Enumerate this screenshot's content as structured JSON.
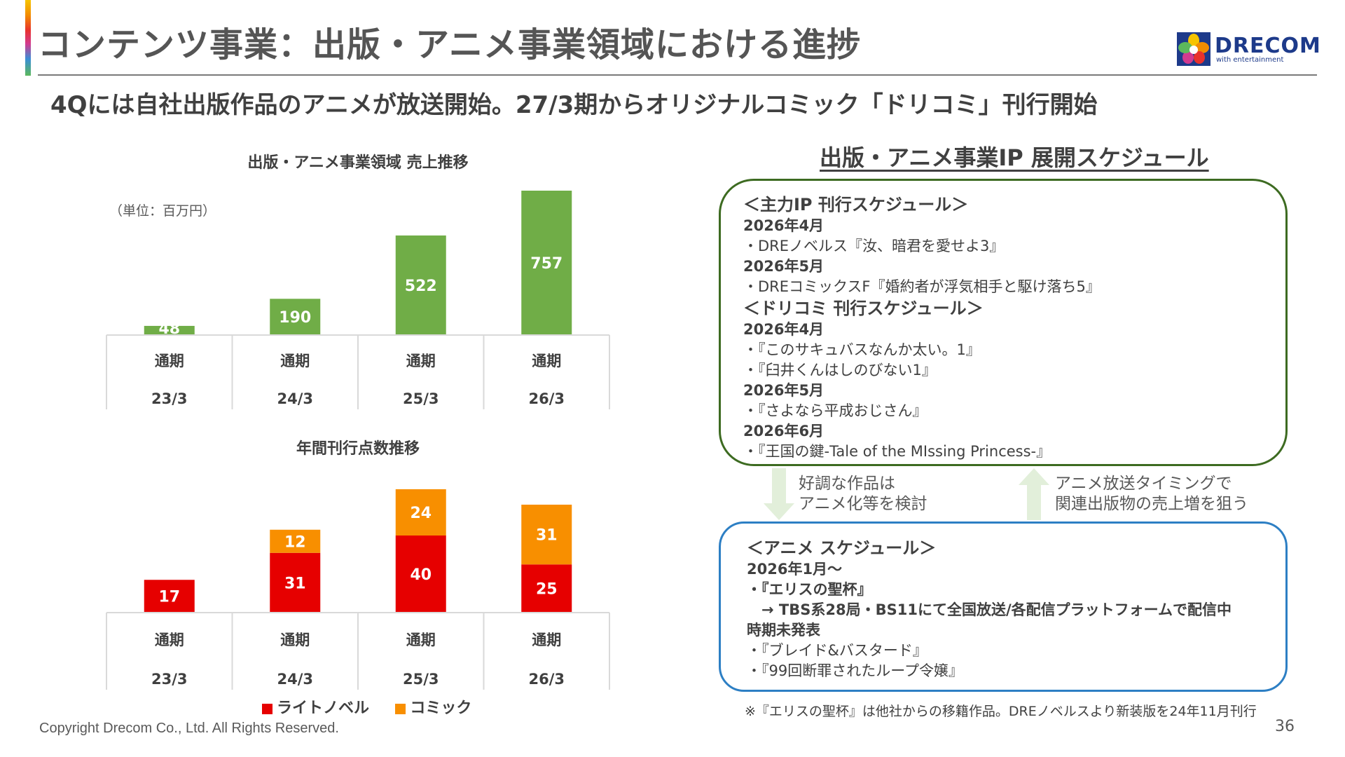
{
  "header": {
    "title": "コンテンツ事業：出版・アニメ事業領域における進捗",
    "subtitle": "4Qには自社出版作品のアニメが放送開始。27/3期からオリジナルコミック「ドリコミ」刊行開始",
    "logo_brand": "DRECOM",
    "logo_tagline": "with entertainment"
  },
  "chart_data": [
    {
      "type": "bar",
      "title": "出版・アニメ事業領域 売上推移",
      "unit": "（単位：百万円）",
      "categories": [
        "通期 23/3",
        "通期 24/3",
        "通期 25/3",
        "通期 26/3"
      ],
      "category_lines": [
        [
          "通期",
          "23/3"
        ],
        [
          "通期",
          "24/3"
        ],
        [
          "通期",
          "25/3"
        ],
        [
          "通期",
          "26/3"
        ]
      ],
      "values": [
        48,
        190,
        522,
        757
      ],
      "ylim": [
        0,
        757
      ],
      "color": "#70ad47"
    },
    {
      "type": "bar",
      "stacked": true,
      "title": "年間刊行点数推移",
      "categories": [
        "通期 23/3",
        "通期 24/3",
        "通期 25/3",
        "通期 26/3"
      ],
      "category_lines": [
        [
          "通期",
          "23/3"
        ],
        [
          "通期",
          "24/3"
        ],
        [
          "通期",
          "25/3"
        ],
        [
          "通期",
          "26/3"
        ]
      ],
      "series": [
        {
          "name": "ライトノベル",
          "values": [
            17,
            31,
            40,
            25
          ],
          "color": "#e60000"
        },
        {
          "name": "コミック",
          "values": [
            0,
            12,
            24,
            31
          ],
          "color": "#f88f00"
        }
      ],
      "ylim": [
        0,
        64
      ],
      "legend": "bottom"
    }
  ],
  "schedule": {
    "title": "出版・アニメ事業IP 展開スケジュール",
    "main_ip": {
      "heading": "＜主力IP 刊行スケジュール＞",
      "lines": [
        {
          "text": "2026年4月",
          "bold": true
        },
        {
          "text": "・DREノベルス『汝、暗君を愛せよ3』",
          "bold": false
        },
        {
          "text": "2026年5月",
          "bold": true
        },
        {
          "text": "・DREコミックスF『婚約者が浮気相手と駆け落ち5』",
          "bold": false
        }
      ]
    },
    "dricomi": {
      "heading": "＜ドリコミ 刊行スケジュール＞",
      "lines": [
        {
          "text": "2026年4月",
          "bold": true
        },
        {
          "text": "・『このサキュバスなんか太い。1』",
          "bold": false
        },
        {
          "text": "・『臼井くんはしのびない1』",
          "bold": false
        },
        {
          "text": "2026年5月",
          "bold": true
        },
        {
          "text": "・『さよなら平成おじさん』",
          "bold": false
        },
        {
          "text": "2026年6月",
          "bold": true
        },
        {
          "text": "・『王国の鍵-Tale of the MIssing Princess-』",
          "bold": false
        }
      ]
    },
    "anime": {
      "heading": "＜アニメ スケジュール＞",
      "lines": [
        {
          "text": "2026年1月～",
          "bold": true
        },
        {
          "text": "・『エリスの聖杯』",
          "bold": true
        },
        {
          "text": "　→ TBS系28局・BS11にて全国放送/各配信プラットフォームで配信中",
          "bold": true
        },
        {
          "text": "時期未発表",
          "bold": true
        },
        {
          "text": "・『ブレイド&バスタード』",
          "bold": false
        },
        {
          "text": "・『99回断罪されたループ令嬢』",
          "bold": false
        }
      ]
    },
    "arrow_down_note": [
      "好調な作品は",
      "アニメ化等を検討"
    ],
    "arrow_up_note": [
      "アニメ放送タイミングで",
      "関連出版物の売上増を狙う"
    ],
    "footnote": "※『エリスの聖杯』は他社からの移籍作品。DREノベルスより新装版を24年11月刊行"
  },
  "footer": {
    "copyright": "Copyright Drecom Co., Ltd. All Rights Reserved.",
    "page": "36"
  },
  "colors": {
    "sales_bar": "#70ad47",
    "light_novel": "#e60000",
    "comic": "#f88f00",
    "box_green": "#3d6b21",
    "box_blue": "#2d7fc4",
    "arrow": "#e2efda"
  }
}
